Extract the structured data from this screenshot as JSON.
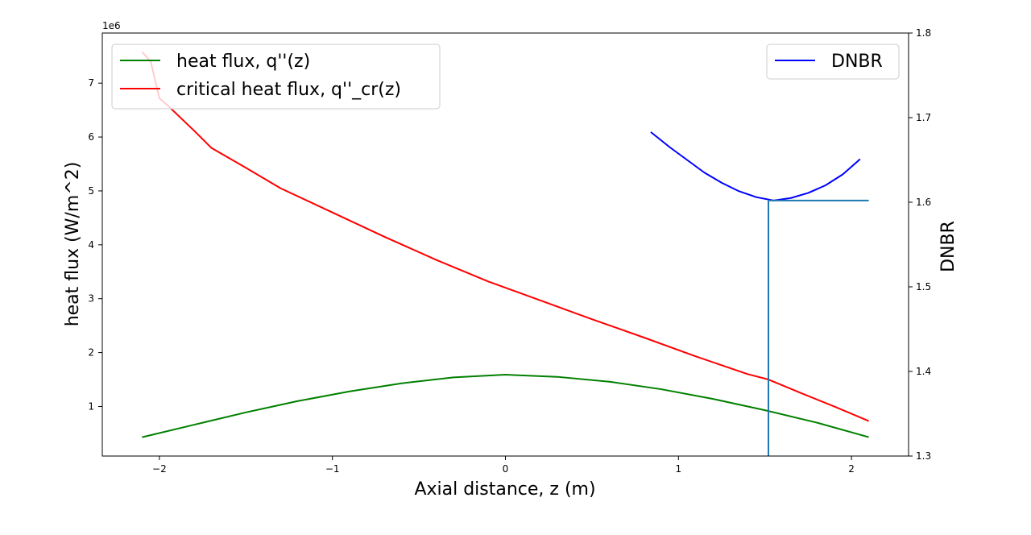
{
  "chart_data": {
    "type": "line",
    "xlabel": "Axial distance, z (m)",
    "ylabel": "heat flux (W/m^2)",
    "ylabel_right": "DNBR",
    "y_offset_label": "1e6",
    "xlim": [
      -2.33,
      2.33
    ],
    "ylim": [
      0.08,
      7.93
    ],
    "ylim_right": [
      1.3,
      1.8
    ],
    "x_ticks": [
      -2,
      -1,
      0,
      1,
      2
    ],
    "x_tick_labels": [
      "−2",
      "−1",
      "0",
      "1",
      "2"
    ],
    "y_ticks": [
      1,
      2,
      3,
      4,
      5,
      6,
      7
    ],
    "y_tick_labels": [
      "1",
      "2",
      "3",
      "4",
      "5",
      "6",
      "7"
    ],
    "y_right_ticks": [
      1.3,
      1.4,
      1.5,
      1.6,
      1.7,
      1.8
    ],
    "y_right_tick_labels": [
      "1.3",
      "1.4",
      "1.5",
      "1.6",
      "1.7",
      "1.8"
    ],
    "grid": false,
    "legend_left": {
      "placement": "upper-left",
      "entries": [
        "heat flux, q''(z)",
        "critical heat flux, q''_cr(z)"
      ]
    },
    "legend_right": {
      "placement": "upper-right",
      "entries": [
        "DNBR"
      ]
    },
    "series": [
      {
        "name": "heat flux, q''(z)",
        "axis": "left",
        "color": "#008000",
        "x": [
          -2.1,
          -1.8,
          -1.5,
          -1.2,
          -0.9,
          -0.6,
          -0.3,
          0,
          0.3,
          0.6,
          0.9,
          1.2,
          1.5,
          1.8,
          2.1
        ],
        "y": [
          0.43,
          0.66,
          0.89,
          1.1,
          1.28,
          1.43,
          1.54,
          1.59,
          1.55,
          1.46,
          1.32,
          1.14,
          0.93,
          0.7,
          0.43
        ]
      },
      {
        "name": "critical heat flux, q''_cr(z)",
        "axis": "left",
        "color": "#ff0000",
        "x": [
          -2.1,
          -2.05,
          -2.0,
          -1.95,
          -1.8,
          -1.7,
          -1.5,
          -1.3,
          -1.0,
          -0.7,
          -0.4,
          -0.1,
          0.2,
          0.5,
          0.8,
          1.1,
          1.4,
          1.52,
          1.7,
          1.9,
          2.1
        ],
        "y": [
          7.58,
          7.4,
          6.72,
          6.58,
          6.12,
          5.8,
          5.43,
          5.05,
          4.6,
          4.15,
          3.72,
          3.32,
          2.97,
          2.62,
          2.28,
          1.93,
          1.6,
          1.5,
          1.26,
          1.0,
          0.73
        ]
      },
      {
        "name": "DNBR",
        "axis": "right",
        "color": "#0000ff",
        "x": [
          0.84,
          0.95,
          1.05,
          1.15,
          1.25,
          1.35,
          1.45,
          1.55,
          1.65,
          1.75,
          1.85,
          1.95,
          2.05
        ],
        "y": [
          1.683,
          1.665,
          1.65,
          1.635,
          1.623,
          1.613,
          1.606,
          1.602,
          1.605,
          1.611,
          1.62,
          1.633,
          1.651
        ]
      }
    ],
    "marker_lines": [
      {
        "color": "#1f77b4",
        "orientation": "vertical",
        "x": 1.52,
        "y_from": 1.3,
        "y_to": 1.602,
        "axis": "right"
      },
      {
        "color": "#1f77b4",
        "orientation": "horizontal",
        "y": 1.602,
        "x_from": 1.52,
        "x_to": 2.1,
        "axis": "right"
      }
    ]
  }
}
